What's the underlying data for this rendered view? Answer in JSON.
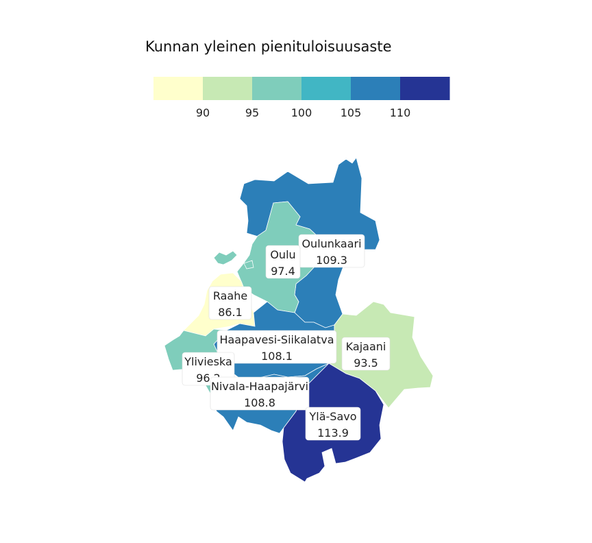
{
  "legend": {
    "title": "Kunnan yleinen pienituloisuusaste",
    "breaks": [
      90,
      95,
      100,
      105,
      110
    ],
    "tick_labels": [
      "90",
      "95",
      "100",
      "105",
      "110"
    ],
    "colors": [
      "#ffffcc",
      "#c7e9b4",
      "#7fcdbb",
      "#41b6c4",
      "#2c7fb8",
      "#253494"
    ]
  },
  "chart_data": {
    "type": "choropleth",
    "title": "Kunnan yleinen pienituloisuusaste",
    "regions": [
      {
        "name": "Oulunkaari",
        "value": "109.3",
        "color": "#2c7fb8"
      },
      {
        "name": "Oulu",
        "value": "97.4",
        "color": "#7fcdbb"
      },
      {
        "name": "Raahe",
        "value": "86.1",
        "color": "#ffffcc"
      },
      {
        "name": "Haapavesi-Siikalatva",
        "value": "108.1",
        "color": "#2c7fb8"
      },
      {
        "name": "Kajaani",
        "value": "93.5",
        "color": "#c7e9b4"
      },
      {
        "name": "Ylivieska",
        "value": "96.2",
        "color": "#7fcdbb"
      },
      {
        "name": "Nivala-Haapajärvi",
        "value": "108.8",
        "color": "#2c7fb8"
      },
      {
        "name": "Ylä-Savo",
        "value": "113.9",
        "color": "#253494"
      }
    ]
  }
}
